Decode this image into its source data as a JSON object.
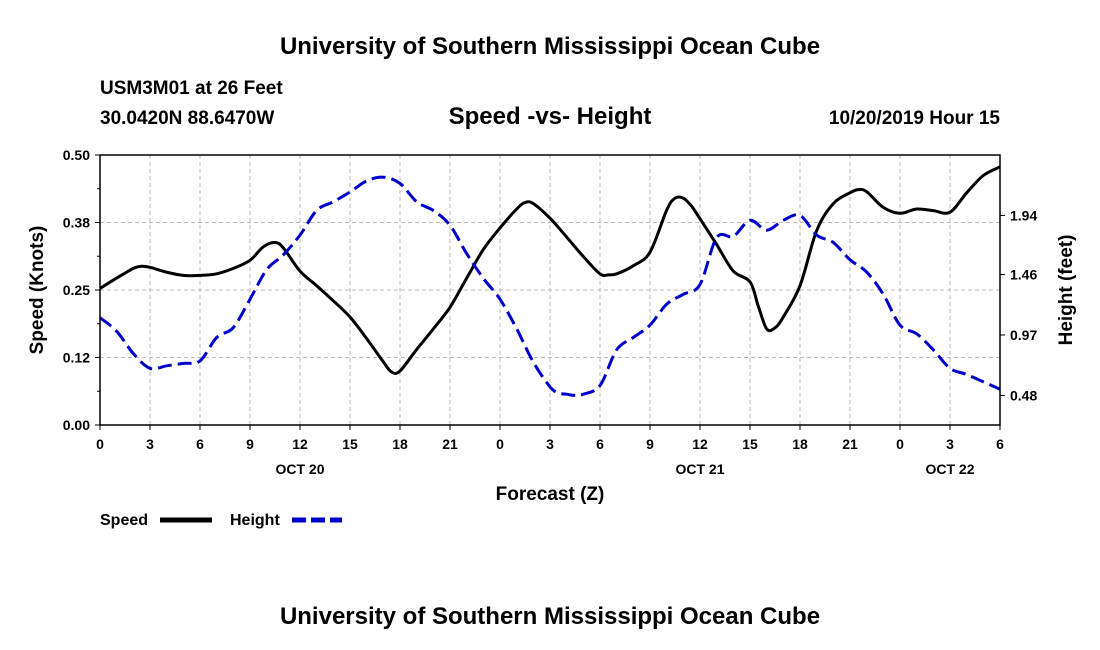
{
  "chart_data": {
    "type": "line",
    "title": "University of Southern Mississippi Ocean Cube",
    "footer_title": "University of Southern Mississippi Ocean Cube",
    "station": "USM3M01 at 26 Feet",
    "location": "30.0420N 88.6470W",
    "subtitle": "Speed -vs- Height",
    "timestamp": "10/20/2019 Hour 15",
    "xlabel": "Forecast (Z)",
    "ylabel_left": "Speed (Knots)",
    "ylabel_right": "Height (feet)",
    "x_range": [
      0,
      54
    ],
    "x_ticks": [
      {
        "x": 0,
        "label": "0"
      },
      {
        "x": 3,
        "label": "3"
      },
      {
        "x": 6,
        "label": "6"
      },
      {
        "x": 9,
        "label": "9"
      },
      {
        "x": 12,
        "label": "12"
      },
      {
        "x": 15,
        "label": "15"
      },
      {
        "x": 18,
        "label": "18"
      },
      {
        "x": 21,
        "label": "21"
      },
      {
        "x": 24,
        "label": "0"
      },
      {
        "x": 27,
        "label": "3"
      },
      {
        "x": 30,
        "label": "6"
      },
      {
        "x": 33,
        "label": "9"
      },
      {
        "x": 36,
        "label": "12"
      },
      {
        "x": 39,
        "label": "15"
      },
      {
        "x": 42,
        "label": "18"
      },
      {
        "x": 45,
        "label": "21"
      },
      {
        "x": 48,
        "label": "0"
      },
      {
        "x": 51,
        "label": "3"
      },
      {
        "x": 54,
        "label": "6"
      }
    ],
    "date_labels": [
      {
        "x": 12,
        "label": "OCT 20"
      },
      {
        "x": 36,
        "label": "OCT 21"
      },
      {
        "x": 51,
        "label": "OCT 22"
      }
    ],
    "y_left_range": [
      0,
      0.5
    ],
    "y_left_ticks": [
      "0.00",
      "0.12",
      "0.25",
      "0.38",
      "0.50"
    ],
    "y_left_tick_values": [
      0,
      0.125,
      0.25,
      0.375,
      0.5
    ],
    "y_right_range": [
      0.24,
      2.43
    ],
    "y_right_ticks": [
      "0.48",
      "0.97",
      "1.46",
      "1.94"
    ],
    "y_right_tick_values": [
      0.48,
      0.97,
      1.46,
      1.94
    ],
    "grid": true,
    "series": [
      {
        "name": "Speed",
        "axis": "left",
        "color": "#000000",
        "style": "solid",
        "x": [
          0,
          1,
          2,
          2.5,
          3,
          4,
          5,
          6,
          7,
          8,
          9,
          9.8,
          10.5,
          11,
          12,
          13,
          14,
          15,
          16,
          17,
          17.5,
          18,
          19,
          20,
          21,
          22,
          23,
          24,
          25,
          25.5,
          26,
          27,
          28,
          29,
          30,
          30.5,
          31,
          32,
          33,
          34,
          34.5,
          35,
          35.5,
          36,
          37,
          38,
          39,
          39.5,
          40,
          40.5,
          41,
          42,
          43,
          44,
          45,
          45.5,
          46,
          47,
          48,
          49,
          50,
          51,
          52,
          53,
          54
        ],
        "values": [
          0.253,
          0.272,
          0.29,
          0.294,
          0.292,
          0.283,
          0.277,
          0.277,
          0.28,
          0.29,
          0.305,
          0.33,
          0.338,
          0.328,
          0.285,
          0.258,
          0.23,
          0.2,
          0.16,
          0.117,
          0.098,
          0.1,
          0.14,
          0.178,
          0.218,
          0.272,
          0.325,
          0.365,
          0.4,
          0.412,
          0.41,
          0.383,
          0.348,
          0.312,
          0.28,
          0.278,
          0.28,
          0.295,
          0.32,
          0.398,
          0.42,
          0.42,
          0.405,
          0.382,
          0.334,
          0.285,
          0.265,
          0.22,
          0.178,
          0.18,
          0.2,
          0.258,
          0.36,
          0.41,
          0.43,
          0.436,
          0.432,
          0.403,
          0.392,
          0.4,
          0.397,
          0.394,
          0.43,
          0.462,
          0.478
        ]
      },
      {
        "name": "Height",
        "axis": "right",
        "color": "#0000cc",
        "style": "dashed",
        "x": [
          0,
          1,
          2,
          3,
          4,
          5,
          6,
          7,
          8,
          9,
          10,
          11,
          12,
          13,
          14,
          15,
          16,
          17,
          18,
          19,
          20,
          21,
          22,
          23,
          24,
          25,
          26,
          27,
          27.5,
          28,
          28.5,
          29,
          30,
          31,
          32,
          33,
          34,
          35,
          36,
          37,
          38,
          39,
          40,
          41,
          42,
          43,
          44,
          45,
          46,
          47,
          48,
          49,
          50,
          51,
          52,
          53,
          54
        ],
        "values": [
          1.11,
          1.0,
          0.82,
          0.7,
          0.72,
          0.74,
          0.76,
          0.95,
          1.03,
          1.26,
          1.5,
          1.62,
          1.78,
          1.98,
          2.05,
          2.13,
          2.22,
          2.25,
          2.2,
          2.05,
          1.98,
          1.86,
          1.63,
          1.43,
          1.26,
          1.02,
          0.75,
          0.55,
          0.5,
          0.49,
          0.48,
          0.49,
          0.56,
          0.85,
          0.95,
          1.05,
          1.22,
          1.3,
          1.38,
          1.76,
          1.77,
          1.9,
          1.82,
          1.9,
          1.94,
          1.78,
          1.72,
          1.58,
          1.48,
          1.3,
          1.05,
          0.98,
          0.85,
          0.7,
          0.65,
          0.59,
          0.53
        ]
      }
    ],
    "legend": [
      {
        "label": "Speed",
        "color": "#000000",
        "style": "solid"
      },
      {
        "label": "Height",
        "color": "#0000cc",
        "style": "dashed"
      }
    ]
  }
}
